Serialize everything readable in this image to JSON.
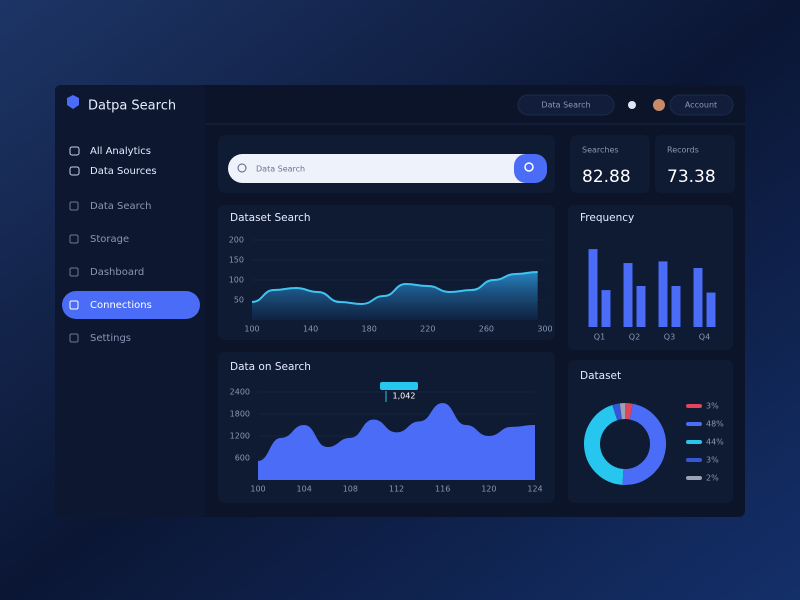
{
  "header": {
    "brand": "Datpa Search",
    "search_button": "Data Search",
    "account": "Account"
  },
  "sidebar": {
    "sections": [
      "All Analytics",
      "Data Sources"
    ],
    "items": [
      "Data Search",
      "Storage",
      "Dashboard",
      "Connections",
      "Settings"
    ],
    "active": 3
  },
  "search": {
    "placeholder": "Data Search"
  },
  "stats": [
    {
      "label": "Searches",
      "value": "82.88"
    },
    {
      "label": "Records",
      "value": "73.38"
    }
  ],
  "line_chart": {
    "type": "line",
    "title": "Dataset Search",
    "color": "#3fc3f0",
    "x": [
      100,
      115,
      130,
      145,
      160,
      175,
      190,
      205,
      220,
      235,
      250,
      265,
      280,
      295
    ],
    "values": [
      45,
      75,
      80,
      70,
      45,
      40,
      60,
      90,
      85,
      70,
      75,
      100,
      115,
      120
    ],
    "xlim": [
      100,
      300
    ],
    "xticks": [
      100,
      140,
      180,
      220,
      260,
      300
    ],
    "ylim": [
      0,
      200
    ],
    "yticks": [
      50,
      100,
      150,
      200
    ]
  },
  "bar_chart": {
    "type": "bar",
    "title": "Frequency",
    "categories": [
      "Q1",
      "Q2",
      "Q3",
      "Q4"
    ],
    "series": [
      {
        "color": "#4a6cf7",
        "values": [
          95,
          78,
          80,
          72
        ]
      },
      {
        "color": "#4a6cf7",
        "values": [
          45,
          50,
          50,
          42
        ]
      }
    ],
    "ylim": [
      0,
      100
    ]
  },
  "area_chart": {
    "type": "area",
    "title": "Data on Search",
    "color": "#4a6cf7",
    "annotation": "1,042",
    "x": [
      100,
      102,
      104,
      106,
      108,
      110,
      112,
      114,
      116,
      118,
      120,
      122,
      124
    ],
    "values": [
      520,
      1150,
      1500,
      900,
      1150,
      1650,
      1300,
      1600,
      2100,
      1500,
      1200,
      1450,
      1500
    ],
    "xlim": [
      100,
      124
    ],
    "xticks": [
      100,
      104,
      108,
      112,
      116,
      120,
      124
    ],
    "ylim": [
      0,
      2400
    ],
    "yticks": [
      600,
      1200,
      1800,
      2400
    ]
  },
  "donut": {
    "type": "pie",
    "title": "Dataset",
    "values": [
      3,
      48,
      44,
      3,
      2
    ],
    "value_labels": [
      "3%",
      "48%",
      "44%",
      "3%",
      "2%"
    ],
    "colors": [
      "#e0455a",
      "#4a6cf7",
      "#27c6ee",
      "#3656d8",
      "#9aa3b5"
    ]
  }
}
